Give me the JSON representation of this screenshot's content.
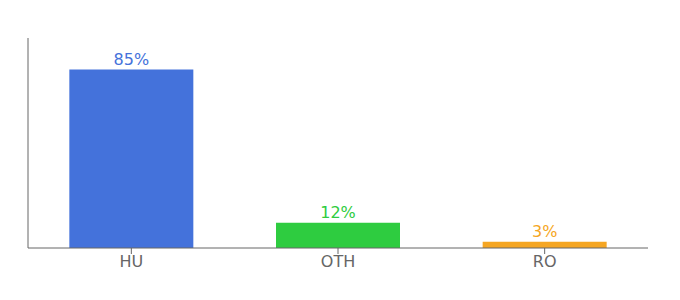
{
  "chart_data": {
    "type": "bar",
    "categories": [
      "HU",
      "OTH",
      "RO"
    ],
    "values": [
      85,
      12,
      3
    ],
    "value_labels": [
      "85%",
      "12%",
      "3%"
    ],
    "colors": [
      "#4472db",
      "#2ecc40",
      "#f5a623"
    ],
    "ylim": [
      0,
      100
    ],
    "data_labels": true,
    "tick_labels": "x",
    "grid": false
  }
}
